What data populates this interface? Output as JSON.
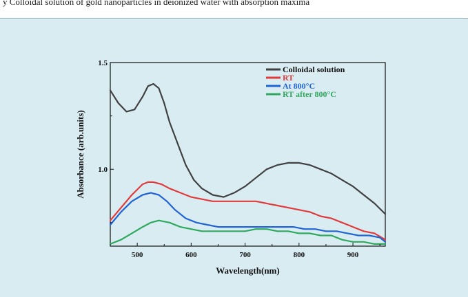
{
  "caption": "y Colloidal solution of gold nanoparticles in deionized water with absorption maxima",
  "chart_data": {
    "type": "line",
    "xlabel": "Wavelength(nm)",
    "ylabel": "Absorbance (arb.units)",
    "xlim": [
      450,
      960
    ],
    "ylim": [
      0.64,
      1.5
    ],
    "xticks": [
      500,
      600,
      700,
      800,
      900
    ],
    "yticks": [
      1.0,
      1.5
    ],
    "xtick_labels": [
      "500",
      "600",
      "700",
      "800",
      "900"
    ],
    "ytick_labels": [
      "1.0",
      "1.5"
    ],
    "grid": false,
    "legend_position": "top-right",
    "series": [
      {
        "name": "Colloidal solution",
        "color": "#404040",
        "x": [
          450,
          465,
          480,
          495,
          510,
          520,
          530,
          540,
          550,
          560,
          575,
          590,
          605,
          620,
          640,
          660,
          680,
          700,
          720,
          740,
          760,
          780,
          800,
          820,
          840,
          860,
          880,
          900,
          920,
          940,
          960
        ],
        "y": [
          1.37,
          1.31,
          1.27,
          1.28,
          1.34,
          1.39,
          1.4,
          1.38,
          1.31,
          1.22,
          1.12,
          1.02,
          0.95,
          0.91,
          0.88,
          0.87,
          0.89,
          0.92,
          0.96,
          1.0,
          1.02,
          1.03,
          1.03,
          1.02,
          1.0,
          0.98,
          0.95,
          0.92,
          0.88,
          0.84,
          0.79
        ]
      },
      {
        "name": "RT",
        "color": "#e03a3a",
        "x": [
          450,
          470,
          490,
          510,
          520,
          530,
          545,
          560,
          580,
          600,
          620,
          640,
          660,
          680,
          700,
          720,
          740,
          760,
          780,
          800,
          820,
          840,
          860,
          880,
          900,
          920,
          940,
          960
        ],
        "y": [
          0.76,
          0.82,
          0.88,
          0.93,
          0.94,
          0.94,
          0.93,
          0.91,
          0.89,
          0.87,
          0.86,
          0.85,
          0.85,
          0.85,
          0.85,
          0.85,
          0.84,
          0.83,
          0.82,
          0.81,
          0.8,
          0.78,
          0.77,
          0.75,
          0.73,
          0.71,
          0.7,
          0.67
        ]
      },
      {
        "name": "At 800°C",
        "color": "#1f63d6",
        "x": [
          450,
          470,
          490,
          510,
          525,
          540,
          555,
          570,
          590,
          610,
          630,
          650,
          670,
          690,
          710,
          730,
          750,
          770,
          790,
          810,
          830,
          850,
          870,
          890,
          910,
          930,
          950,
          960
        ],
        "y": [
          0.74,
          0.8,
          0.85,
          0.88,
          0.89,
          0.88,
          0.85,
          0.81,
          0.77,
          0.75,
          0.74,
          0.73,
          0.73,
          0.73,
          0.73,
          0.73,
          0.73,
          0.73,
          0.73,
          0.72,
          0.72,
          0.71,
          0.71,
          0.7,
          0.69,
          0.69,
          0.68,
          0.66
        ]
      },
      {
        "name": "RT after 800°C",
        "color": "#2ea85c",
        "x": [
          450,
          470,
          490,
          510,
          525,
          540,
          560,
          580,
          600,
          620,
          640,
          660,
          680,
          700,
          720,
          740,
          760,
          780,
          800,
          820,
          840,
          860,
          880,
          900,
          920,
          940,
          960
        ],
        "y": [
          0.65,
          0.67,
          0.7,
          0.73,
          0.75,
          0.76,
          0.75,
          0.73,
          0.72,
          0.71,
          0.71,
          0.71,
          0.71,
          0.71,
          0.72,
          0.72,
          0.71,
          0.71,
          0.7,
          0.7,
          0.69,
          0.69,
          0.67,
          0.66,
          0.66,
          0.65,
          0.65
        ]
      }
    ]
  }
}
